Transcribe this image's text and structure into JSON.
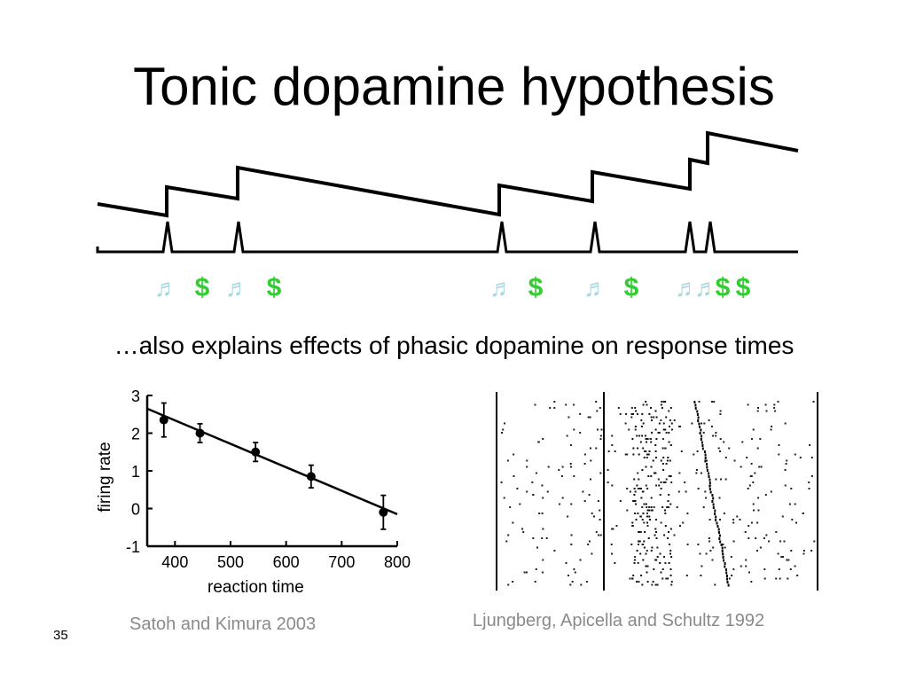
{
  "slide": {
    "title": "Tonic dopamine hypothesis",
    "subtitle": "…also explains effects of phasic dopamine on response times",
    "page_number": "35"
  },
  "diagram": {
    "cue_icon": "music-note-icon",
    "reward_symbol": "$",
    "cue_color": "#a9d7e0",
    "reward_color": "#33cc33",
    "events": [
      {
        "type": "cue",
        "symbol": "♬"
      },
      {
        "type": "reward",
        "symbol": "$"
      },
      {
        "type": "cue",
        "symbol": "♬"
      },
      {
        "type": "reward",
        "symbol": "$"
      },
      {
        "type": "cue",
        "symbol": "♬"
      },
      {
        "type": "reward",
        "symbol": "$"
      },
      {
        "type": "cue",
        "symbol": "♬"
      },
      {
        "type": "reward",
        "symbol": "$"
      },
      {
        "type": "cue",
        "symbol": "♬"
      },
      {
        "type": "cue",
        "symbol": "♬"
      },
      {
        "type": "reward",
        "symbol": "$"
      },
      {
        "type": "reward",
        "symbol": "$"
      }
    ]
  },
  "left_figure": {
    "xlabel": "reaction time",
    "ylabel": "firing rate",
    "citation": "Satoh and Kimura 2003"
  },
  "right_figure": {
    "citation": "Ljungberg, Apicella and Schultz 1992"
  },
  "chart_data": {
    "type": "scatter",
    "title": "",
    "xlabel": "reaction time",
    "ylabel": "firing rate",
    "xlim": [
      350,
      800
    ],
    "ylim": [
      -1,
      3
    ],
    "xticks": [
      400,
      500,
      600,
      700,
      800
    ],
    "yticks": [
      -1,
      0,
      1,
      2,
      3
    ],
    "points": [
      {
        "x": 380,
        "y": 2.35,
        "err": 0.45
      },
      {
        "x": 445,
        "y": 2.0,
        "err": 0.25
      },
      {
        "x": 545,
        "y": 1.5,
        "err": 0.25
      },
      {
        "x": 645,
        "y": 0.85,
        "err": 0.3
      },
      {
        "x": 775,
        "y": -0.1,
        "err": 0.45
      }
    ],
    "fit": {
      "x": [
        350,
        800
      ],
      "y": [
        2.65,
        -0.15
      ]
    }
  }
}
